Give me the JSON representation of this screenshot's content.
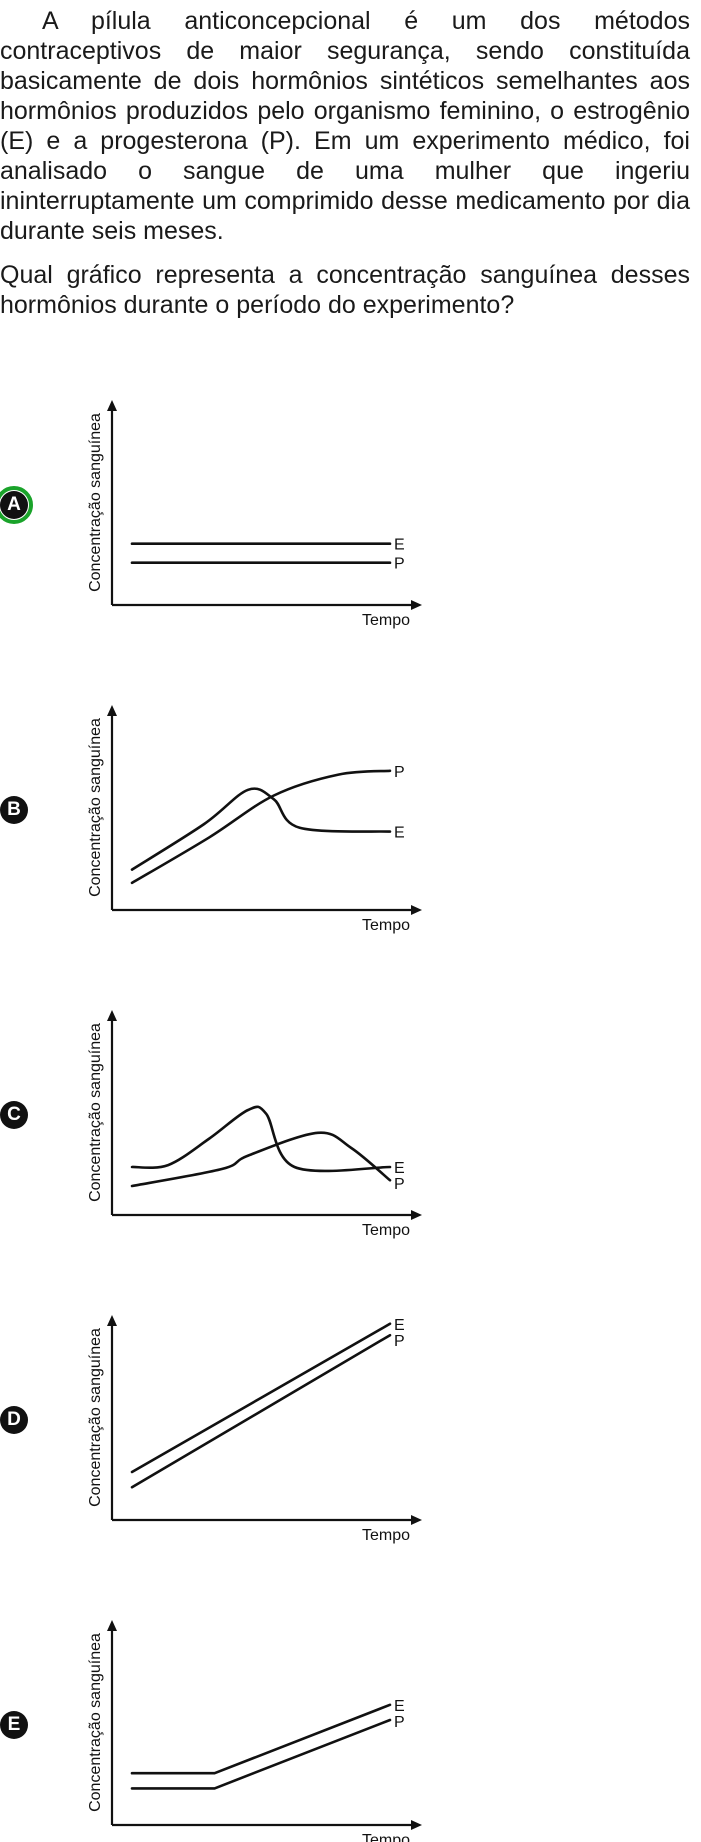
{
  "question": {
    "paragraph1": "A pílula anticoncepcional é um dos métodos contraceptivos de maior segurança, sendo constituída basicamente de dois hormônios sintéticos semelhantes aos hormônios produzidos pelo organismo feminino, o estrogênio (E) e a progesterona (P). Em um experimento médico, foi analisado o sangue de uma mulher que ingeriu ininterruptamente um comprimido desse medicamento por dia durante seis meses.",
    "paragraph2": "Qual gráfico representa a concentração sanguínea desses hormônios durante o período do experimento?"
  },
  "selected_option": "A",
  "selected_color": "#1aa32a",
  "chart_data": [
    {
      "option": "A",
      "type": "line",
      "xlabel": "Tempo",
      "ylabel": "Concentração sanguínea",
      "series": [
        {
          "name": "E",
          "x": [
            0,
            1
          ],
          "y": [
            0.27,
            0.27
          ]
        },
        {
          "name": "P",
          "x": [
            0,
            1
          ],
          "y": [
            0.17,
            0.17
          ]
        }
      ]
    },
    {
      "option": "B",
      "type": "line",
      "xlabel": "Tempo",
      "ylabel": "Concentração sanguínea",
      "series": [
        {
          "name": "P",
          "x": [
            0,
            0.3,
            0.55,
            0.8,
            1
          ],
          "y": [
            0.09,
            0.33,
            0.55,
            0.66,
            0.68
          ]
        },
        {
          "name": "E",
          "x": [
            0,
            0.28,
            0.45,
            0.55,
            0.65,
            1
          ],
          "y": [
            0.16,
            0.4,
            0.58,
            0.53,
            0.38,
            0.36
          ]
        }
      ]
    },
    {
      "option": "C",
      "type": "line",
      "xlabel": "Tempo",
      "ylabel": "Concentração sanguínea",
      "series": [
        {
          "name": "E",
          "x": [
            0,
            0.14,
            0.3,
            0.45,
            0.52,
            0.63,
            1
          ],
          "y": [
            0.2,
            0.21,
            0.35,
            0.5,
            0.48,
            0.2,
            0.2
          ]
        },
        {
          "name": "P",
          "x": [
            0,
            0.35,
            0.45,
            0.72,
            0.85,
            1
          ],
          "y": [
            0.1,
            0.19,
            0.26,
            0.38,
            0.3,
            0.13
          ]
        }
      ]
    },
    {
      "option": "D",
      "type": "line",
      "xlabel": "Tempo",
      "ylabel": "Concentração sanguínea",
      "series": [
        {
          "name": "E",
          "x": [
            0,
            1
          ],
          "y": [
            0.2,
            0.98
          ]
        },
        {
          "name": "P",
          "x": [
            0,
            1
          ],
          "y": [
            0.12,
            0.92
          ]
        }
      ]
    },
    {
      "option": "E",
      "type": "line",
      "xlabel": "Tempo",
      "ylabel": "Concentração sanguínea",
      "series": [
        {
          "name": "E",
          "x": [
            0,
            0.32,
            1
          ],
          "y": [
            0.22,
            0.22,
            0.58
          ]
        },
        {
          "name": "P",
          "x": [
            0,
            0.32,
            1
          ],
          "y": [
            0.14,
            0.14,
            0.5
          ]
        }
      ]
    }
  ]
}
